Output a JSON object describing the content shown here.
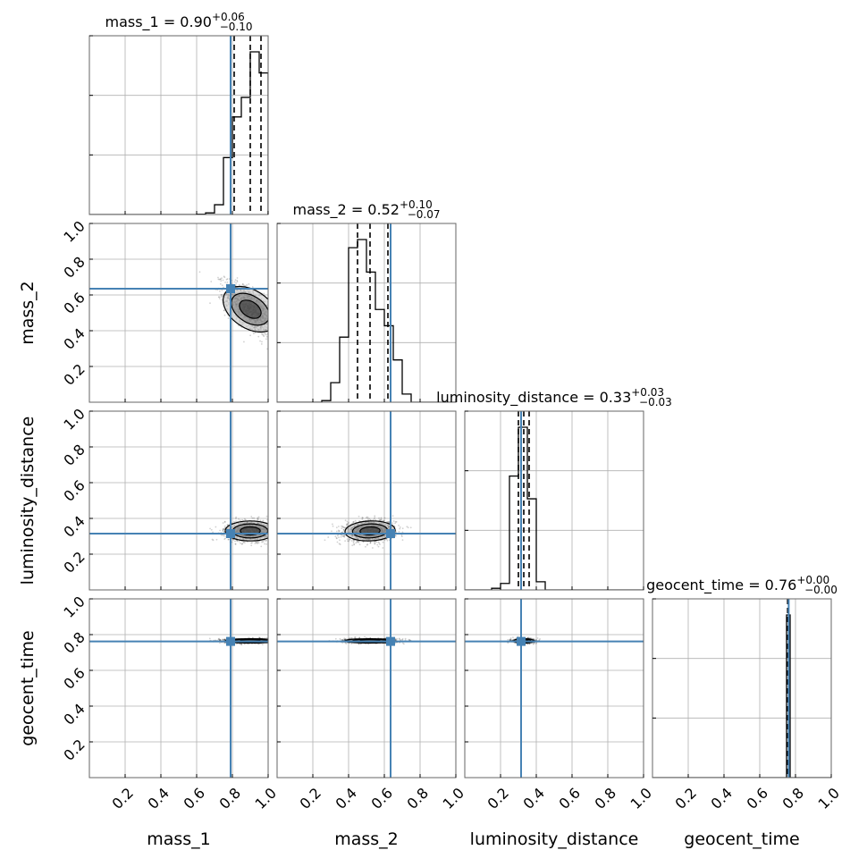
{
  "chart_data": {
    "type": "corner",
    "parameters": [
      "mass_1",
      "mass_2",
      "luminosity_distance",
      "geocent_time"
    ],
    "truths": [
      0.79,
      0.635,
      0.315,
      0.762
    ],
    "truth_color": "#4682b4",
    "grid": true,
    "axis_range": [
      0,
      1
    ],
    "tick_labels": [
      "0.2",
      "0.4",
      "0.6",
      "0.8",
      "1.0"
    ],
    "tick_values": [
      0.2,
      0.4,
      0.6,
      0.8,
      1.0
    ],
    "titles": [
      {
        "name": "mass_1",
        "median": "0.90",
        "plus": "+0.06",
        "minus": "−0.10"
      },
      {
        "name": "mass_2",
        "median": "0.52",
        "plus": "+0.10",
        "minus": "−0.07"
      },
      {
        "name": "luminosity_distance",
        "median": "0.33",
        "plus": "+0.03",
        "minus": "−0.03"
      },
      {
        "name": "geocent_time",
        "median": "0.76",
        "plus": "+0.00",
        "minus": "−0.00"
      }
    ],
    "quantiles": [
      [
        0.81,
        0.9,
        0.96
      ],
      [
        0.45,
        0.52,
        0.62
      ],
      [
        0.3,
        0.33,
        0.36
      ],
      [
        0.756,
        0.76,
        0.76
      ]
    ],
    "histograms": [
      {
        "edges": [
          0.6,
          0.65,
          0.7,
          0.75,
          0.8,
          0.85,
          0.9,
          0.95,
          1.0
        ],
        "counts": [
          0.2,
          1,
          6,
          35,
          60,
          72,
          100,
          87
        ]
      },
      {
        "edges": [
          0.25,
          0.3,
          0.35,
          0.4,
          0.45,
          0.5,
          0.55,
          0.6,
          0.65,
          0.7,
          0.75
        ],
        "counts": [
          1,
          12,
          40,
          95,
          100,
          80,
          57,
          47,
          26,
          5
        ]
      },
      {
        "edges": [
          0.15,
          0.2,
          0.25,
          0.3,
          0.35,
          0.4,
          0.45
        ],
        "counts": [
          1,
          4,
          70,
          100,
          56,
          5
        ]
      },
      {
        "edges": [
          0.7,
          0.74,
          0.75,
          0.76,
          0.77,
          0.78
        ],
        "counts": [
          0,
          0,
          100,
          100,
          0
        ]
      }
    ],
    "density_clouds": [
      {
        "row": 1,
        "col": 0,
        "cx": 0.9,
        "cy": 0.52,
        "sx": 0.07,
        "sy": 0.07,
        "rho": -0.65
      },
      {
        "row": 2,
        "col": 0,
        "cx": 0.9,
        "cy": 0.33,
        "sx": 0.07,
        "sy": 0.028,
        "rho": 0.0
      },
      {
        "row": 2,
        "col": 1,
        "cx": 0.52,
        "cy": 0.33,
        "sx": 0.07,
        "sy": 0.028,
        "rho": 0.1
      },
      {
        "row": 3,
        "col": 0,
        "cx": 0.9,
        "cy": 0.765,
        "sx": 0.07,
        "sy": 0.006,
        "rho": 0.0
      },
      {
        "row": 3,
        "col": 1,
        "cx": 0.52,
        "cy": 0.765,
        "sx": 0.07,
        "sy": 0.006,
        "rho": 0.0
      },
      {
        "row": 3,
        "col": 2,
        "cx": 0.33,
        "cy": 0.765,
        "sx": 0.028,
        "sy": 0.006,
        "rho": 0.0
      }
    ]
  }
}
